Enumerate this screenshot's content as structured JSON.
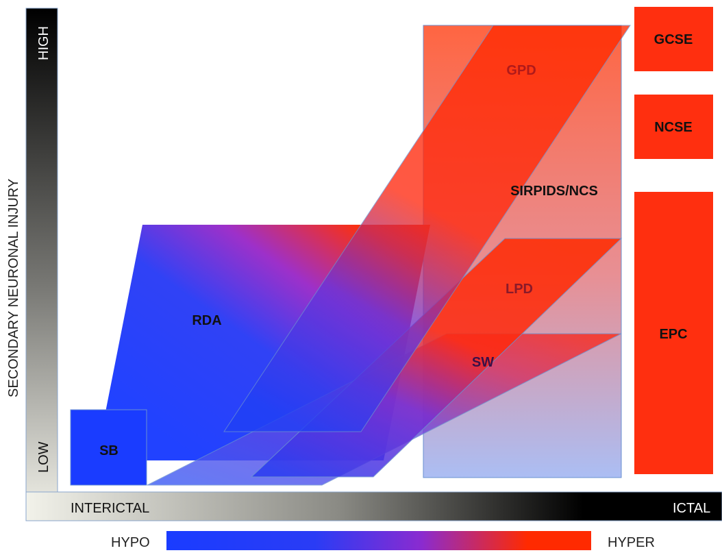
{
  "axes": {
    "y_title": "SECONDARY NEURONAL INJURY",
    "y_high": "HIGH",
    "y_low": "LOW",
    "x_left": "INTERICTAL",
    "x_right": "ICTAL"
  },
  "legend": {
    "left": "HYPO",
    "right": "HYPER"
  },
  "regions": {
    "gcse": "GCSE",
    "ncse": "NCSE",
    "epc": "EPC",
    "gpd": "GPD",
    "sirpids": "SIRPIDS/NCS",
    "lpd": "LPD",
    "rda": "RDA",
    "sw": "SW",
    "sb": "SB"
  },
  "colors": {
    "hypo": "#1a3cff",
    "mid": "#8a2bd0",
    "hyper": "#ff2a00",
    "ictal_box": "#ff2f0f",
    "axis_dark": "#000000",
    "axis_light": "#f2f2ec"
  }
}
